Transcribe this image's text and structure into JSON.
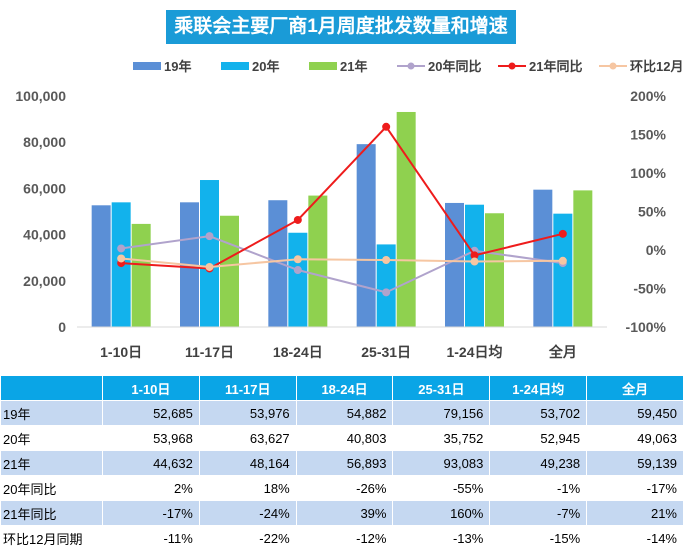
{
  "title": "乘联会主要厂商1月周度批发数量和增速",
  "chart_data": {
    "type": "bar",
    "title": "乘联会主要厂商1月周度批发数量和增速",
    "categories": [
      "1-10日",
      "11-17日",
      "18-24日",
      "25-31日",
      "1-24日均",
      "全月"
    ],
    "ylim": [
      0,
      100000
    ],
    "y_ticks": [
      "0",
      "20,000",
      "40,000",
      "60,000",
      "80,000",
      "100,000"
    ],
    "y2lim": [
      -100,
      200
    ],
    "y2_ticks": [
      "-100%",
      "-50%",
      "0%",
      "50%",
      "100%",
      "150%",
      "200%"
    ],
    "series": [
      {
        "name": "19年",
        "kind": "bar",
        "color": "#5b8fd6",
        "values": [
          52685,
          53976,
          54882,
          79156,
          53702,
          59450
        ]
      },
      {
        "name": "20年",
        "kind": "bar",
        "color": "#12b2ec",
        "values": [
          53968,
          63627,
          40803,
          35752,
          52945,
          49063
        ]
      },
      {
        "name": "21年",
        "kind": "bar",
        "color": "#8fd14f",
        "values": [
          44632,
          48164,
          56893,
          93083,
          49238,
          59139
        ]
      },
      {
        "name": "20年同比",
        "kind": "line",
        "axis": "right",
        "color": "#b0a3cc",
        "values": [
          2,
          18,
          -26,
          -55,
          -1,
          -17
        ]
      },
      {
        "name": "21年同比",
        "kind": "line",
        "axis": "right",
        "color": "#ee1c1c",
        "values": [
          -17,
          -24,
          39,
          160,
          -7,
          21
        ]
      },
      {
        "name": "环比12月同期",
        "kind": "line",
        "axis": "right",
        "color": "#f6c6a2",
        "values": [
          -11,
          -22,
          -12,
          -13,
          -15,
          -14
        ]
      }
    ]
  },
  "table": {
    "columns": [
      "1-10日",
      "11-17日",
      "18-24日",
      "25-31日",
      "1-24日均",
      "全月"
    ],
    "rows": [
      {
        "label": "19年",
        "cells": [
          "52,685",
          "53,976",
          "54,882",
          "79,156",
          "53,702",
          "59,450"
        ]
      },
      {
        "label": "20年",
        "cells": [
          "53,968",
          "63,627",
          "40,803",
          "35,752",
          "52,945",
          "49,063"
        ]
      },
      {
        "label": "21年",
        "cells": [
          "44,632",
          "48,164",
          "56,893",
          "93,083",
          "49,238",
          "59,139"
        ]
      },
      {
        "label": "20年同比",
        "cells": [
          "2%",
          "18%",
          "-26%",
          "-55%",
          "-1%",
          "-17%"
        ]
      },
      {
        "label": "21年同比",
        "cells": [
          "-17%",
          "-24%",
          "39%",
          "160%",
          "-7%",
          "21%"
        ]
      },
      {
        "label": "环比12月同期",
        "cells": [
          "-11%",
          "-22%",
          "-12%",
          "-13%",
          "-15%",
          "-14%"
        ]
      }
    ]
  }
}
